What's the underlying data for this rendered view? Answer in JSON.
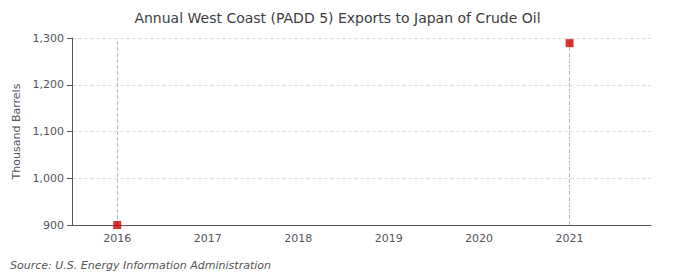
{
  "chart_data": {
    "type": "scatter",
    "title": "Annual West Coast (PADD 5) Exports to Japan of Crude Oil",
    "ylabel": "Thousand Barrels",
    "annotations": [
      "Source: U.S. Energy Information Administration"
    ],
    "x": [
      2016,
      2021
    ],
    "values": [
      900,
      1289
    ],
    "color": "#cc0000",
    "marker": "square",
    "xlim": [
      2015.5,
      2021.9
    ],
    "xticks": [
      2016,
      2017,
      2018,
      2019,
      2020,
      2021
    ],
    "ylim": [
      900,
      1300
    ],
    "yticks": [
      900,
      {
        "value": 1000,
        "label": "1,000"
      },
      {
        "value": 1100,
        "label": "1,100"
      },
      {
        "value": 1200,
        "label": "1,200"
      },
      {
        "value": 1300,
        "label": "1,300"
      }
    ],
    "grid": "y"
  }
}
